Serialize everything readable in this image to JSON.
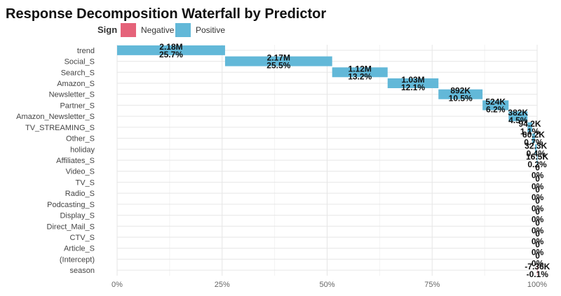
{
  "chart_data": {
    "type": "bar",
    "subtype": "horizontal-waterfall",
    "title": "Response Decomposition Waterfall by Predictor",
    "legend": {
      "title": "Sign",
      "position": "top-left",
      "entries": [
        {
          "label": "Negative",
          "color": "#E5637A"
        },
        {
          "label": "Positive",
          "color": "#62B8D8"
        }
      ]
    },
    "xaxis": {
      "ticks": [
        "0%",
        "25%",
        "50%",
        "75%",
        "100%"
      ],
      "tick_values": [
        0,
        25,
        50,
        75,
        100
      ],
      "range": [
        0,
        100
      ]
    },
    "grid": true,
    "categories": [
      "trend",
      "Social_S",
      "Search_S",
      "Amazon_S",
      "Newsletter_S",
      "Partner_S",
      "Amazon_Newsletter_S",
      "TV_STREAMING_S",
      "Other_S",
      "holiday",
      "Affiliates_S",
      "Video_S",
      "TV_S",
      "Radio_S",
      "Podcasting_S",
      "Display_S",
      "Direct_Mail_S",
      "CTV_S",
      "Article_S",
      "(Intercept)",
      "season"
    ],
    "bars": [
      {
        "label": "trend",
        "start": 0,
        "end": 25.7,
        "sign": "Positive",
        "value_text": "2.18M",
        "pct_text": "25.7%"
      },
      {
        "label": "Social_S",
        "start": 25.7,
        "end": 51.2,
        "sign": "Positive",
        "value_text": "2.17M",
        "pct_text": "25.5%"
      },
      {
        "label": "Search_S",
        "start": 51.2,
        "end": 64.4,
        "sign": "Positive",
        "value_text": "1.12M",
        "pct_text": "13.2%"
      },
      {
        "label": "Amazon_S",
        "start": 64.4,
        "end": 76.5,
        "sign": "Positive",
        "value_text": "1.03M",
        "pct_text": "12.1%"
      },
      {
        "label": "Newsletter_S",
        "start": 76.5,
        "end": 87.0,
        "sign": "Positive",
        "value_text": "892K",
        "pct_text": "10.5%"
      },
      {
        "label": "Partner_S",
        "start": 87.0,
        "end": 93.2,
        "sign": "Positive",
        "value_text": "524K",
        "pct_text": "6.2%"
      },
      {
        "label": "Amazon_Newsletter_S",
        "start": 93.2,
        "end": 97.7,
        "sign": "Positive",
        "value_text": "382K",
        "pct_text": "4.5%"
      },
      {
        "label": "TV_STREAMING_S",
        "start": 97.7,
        "end": 98.8,
        "sign": "Positive",
        "value_text": "94.2K",
        "pct_text": "1.1%"
      },
      {
        "label": "Other_S",
        "start": 98.8,
        "end": 99.5,
        "sign": "Positive",
        "value_text": "60.2K",
        "pct_text": "0.7%"
      },
      {
        "label": "holiday",
        "start": 99.5,
        "end": 99.9,
        "sign": "Positive",
        "value_text": "32.3K",
        "pct_text": "0.4%"
      },
      {
        "label": "Affiliates_S",
        "start": 99.9,
        "end": 100.1,
        "sign": "Positive",
        "value_text": "16.5K",
        "pct_text": "0.2%"
      },
      {
        "label": "Video_S",
        "start": 100.1,
        "end": 100.1,
        "sign": "Positive",
        "value_text": "0",
        "pct_text": "0%"
      },
      {
        "label": "TV_S",
        "start": 100.1,
        "end": 100.1,
        "sign": "Positive",
        "value_text": "0",
        "pct_text": "0%"
      },
      {
        "label": "Radio_S",
        "start": 100.1,
        "end": 100.1,
        "sign": "Positive",
        "value_text": "0",
        "pct_text": "0%"
      },
      {
        "label": "Podcasting_S",
        "start": 100.1,
        "end": 100.1,
        "sign": "Positive",
        "value_text": "0",
        "pct_text": "0%"
      },
      {
        "label": "Display_S",
        "start": 100.1,
        "end": 100.1,
        "sign": "Positive",
        "value_text": "0",
        "pct_text": "0%"
      },
      {
        "label": "Direct_Mail_S",
        "start": 100.1,
        "end": 100.1,
        "sign": "Positive",
        "value_text": "0",
        "pct_text": "0%"
      },
      {
        "label": "CTV_S",
        "start": 100.1,
        "end": 100.1,
        "sign": "Positive",
        "value_text": "0",
        "pct_text": "0%"
      },
      {
        "label": "Article_S",
        "start": 100.1,
        "end": 100.1,
        "sign": "Positive",
        "value_text": "0",
        "pct_text": "0%"
      },
      {
        "label": "(Intercept)",
        "start": 100.1,
        "end": 100.1,
        "sign": "Positive",
        "value_text": "0",
        "pct_text": "0%"
      },
      {
        "label": "season",
        "start": 100.1,
        "end": 100.0,
        "sign": "Negative",
        "value_text": "-7.36K",
        "pct_text": "-0.1%"
      }
    ]
  }
}
